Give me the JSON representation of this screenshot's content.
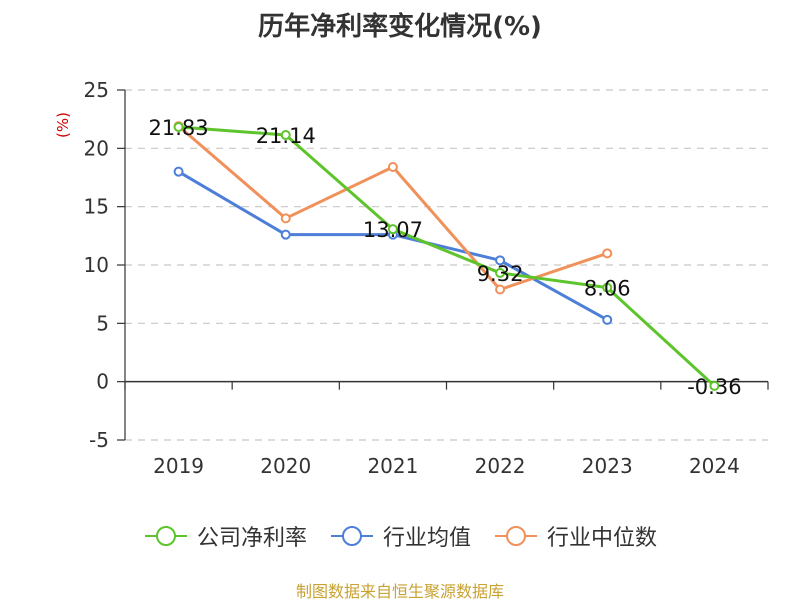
{
  "title": "历年净利率变化情况(%)",
  "source_text": "制图数据来自恒生聚源数据库",
  "chart_data": {
    "type": "line",
    "categories": [
      "2019",
      "2020",
      "2021",
      "2022",
      "2023",
      "2024"
    ],
    "ylabel": "(%)",
    "ylim": [
      -5,
      25
    ],
    "yticks": [
      -5,
      0,
      5,
      10,
      15,
      20,
      25
    ],
    "grid": true,
    "legend_position": "bottom",
    "series": [
      {
        "name": "公司净利率",
        "color": "#5ec42c",
        "values": [
          21.83,
          21.14,
          13.07,
          9.32,
          8.06,
          -0.36
        ],
        "labels": [
          "21.83",
          "21.14",
          "13.07",
          "9.32",
          "8.06",
          "-0.36"
        ]
      },
      {
        "name": "行业均值",
        "color": "#4e7fd8",
        "values": [
          18.0,
          12.6,
          12.6,
          10.4,
          5.3,
          null
        ]
      },
      {
        "name": "行业中位数",
        "color": "#f0905a",
        "values": [
          21.9,
          14.0,
          18.4,
          7.9,
          11.0,
          null
        ]
      }
    ]
  }
}
